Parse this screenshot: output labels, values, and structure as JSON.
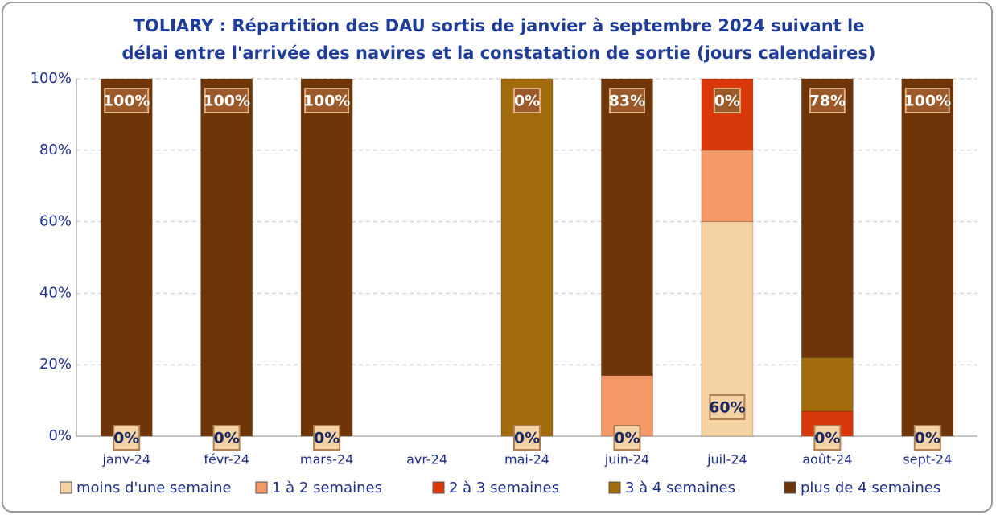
{
  "chart_data": {
    "type": "stacked-bar",
    "title": [
      "TOLIARY : Répartition des DAU sortis de janvier à septembre 2024 suivant le",
      "délai entre l'arrivée des navires et la constatation de sortie (jours calendaires)"
    ],
    "categories": [
      "janv-24",
      "févr-24",
      "mars-24",
      "avr-24",
      "mai-24",
      "juin-24",
      "juil-24",
      "août-24",
      "sept-24"
    ],
    "series": [
      {
        "name": "moins d'une semaine",
        "color": "#f6d3a2",
        "values": [
          0,
          0,
          0,
          null,
          0,
          0,
          60,
          0,
          0
        ],
        "value_labels": [
          "0%",
          "0%",
          "0%",
          null,
          "0%",
          "0%",
          "60%",
          "0%",
          "0%"
        ]
      },
      {
        "name": "1 à 2 semaines",
        "color": "#f59868",
        "values": [
          0,
          0,
          0,
          null,
          0,
          17,
          20,
          0,
          0
        ]
      },
      {
        "name": "2 à 3 semaines",
        "color": "#d8380a",
        "values": [
          0,
          0,
          0,
          null,
          0,
          0,
          20,
          7,
          0
        ]
      },
      {
        "name": "3 à 4 semaines",
        "color": "#a26b0b",
        "values": [
          0,
          0,
          0,
          null,
          100,
          0,
          0,
          15,
          0
        ]
      },
      {
        "name": "plus de 4 semaines",
        "color": "#6e3608",
        "values": [
          100,
          100,
          100,
          null,
          0,
          83,
          0,
          78,
          100
        ],
        "value_labels": [
          "100%",
          "100%",
          "100%",
          null,
          "0%",
          "83%",
          "0%",
          "78%",
          "100%"
        ]
      }
    ],
    "ylim": [
      0,
      100
    ],
    "yticks": [
      {
        "value": 0,
        "label": "0%"
      },
      {
        "value": 20,
        "label": "20%"
      },
      {
        "value": 40,
        "label": "40%"
      },
      {
        "value": 60,
        "label": "60%"
      },
      {
        "value": 80,
        "label": "80%"
      },
      {
        "value": 100,
        "label": "100%"
      }
    ],
    "grid": true,
    "legend": "bottom"
  }
}
